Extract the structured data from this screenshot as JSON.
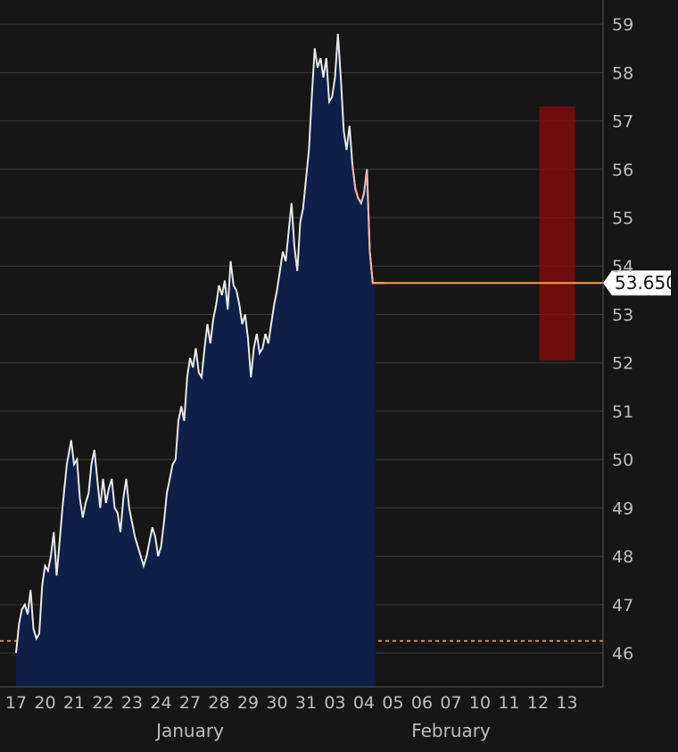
{
  "chart_data": {
    "type": "area",
    "x_tick_labels": [
      "17",
      "20",
      "21",
      "22",
      "23",
      "24",
      "27",
      "28",
      "29",
      "30",
      "31",
      "03",
      "04",
      "05",
      "06",
      "07",
      "10",
      "11",
      "12",
      "13"
    ],
    "month_labels": [
      {
        "label": "January",
        "at_tick": 6
      },
      {
        "label": "February",
        "at_tick": 15
      }
    ],
    "ylim": [
      45.3,
      59.5
    ],
    "y_ticks": [
      46,
      47,
      48,
      49,
      50,
      51,
      52,
      53,
      54,
      55,
      56,
      57,
      58,
      59
    ],
    "grid": true,
    "reference_line": 46.25,
    "highlight_region": {
      "x_start": 18.6,
      "x_end": 19.4,
      "y_low": 52.05,
      "y_high": 57.3
    },
    "last_value": 53.65,
    "last_value_label": "53.650",
    "series": [
      {
        "points": [
          [
            0.0,
            46.0
          ],
          [
            0.1,
            46.6
          ],
          [
            0.2,
            46.9
          ],
          [
            0.3,
            47.0
          ],
          [
            0.4,
            46.8
          ],
          [
            0.5,
            47.3
          ],
          [
            0.6,
            46.5
          ],
          [
            0.7,
            46.3
          ],
          [
            0.8,
            46.4
          ],
          [
            0.9,
            47.4
          ],
          [
            1.0,
            47.8
          ],
          [
            1.1,
            47.7
          ],
          [
            1.2,
            48.0
          ],
          [
            1.3,
            48.5
          ],
          [
            1.4,
            47.6
          ],
          [
            1.5,
            48.3
          ],
          [
            1.6,
            49.0
          ],
          [
            1.75,
            49.9
          ],
          [
            1.9,
            50.4
          ],
          [
            2.0,
            49.9
          ],
          [
            2.1,
            50.0
          ],
          [
            2.2,
            49.2
          ],
          [
            2.3,
            48.8
          ],
          [
            2.4,
            49.1
          ],
          [
            2.5,
            49.3
          ],
          [
            2.6,
            49.9
          ],
          [
            2.7,
            50.2
          ],
          [
            2.8,
            49.6
          ],
          [
            2.9,
            49.0
          ],
          [
            3.0,
            49.6
          ],
          [
            3.1,
            49.1
          ],
          [
            3.2,
            49.4
          ],
          [
            3.3,
            49.6
          ],
          [
            3.4,
            49.0
          ],
          [
            3.5,
            48.9
          ],
          [
            3.6,
            48.5
          ],
          [
            3.7,
            49.2
          ],
          [
            3.8,
            49.6
          ],
          [
            3.9,
            49.0
          ],
          [
            4.0,
            48.7
          ],
          [
            4.1,
            48.4
          ],
          [
            4.2,
            48.2
          ],
          [
            4.3,
            48.0
          ],
          [
            4.4,
            47.8
          ],
          [
            4.5,
            48.0
          ],
          [
            4.6,
            48.3
          ],
          [
            4.7,
            48.6
          ],
          [
            4.8,
            48.4
          ],
          [
            4.9,
            48.0
          ],
          [
            5.0,
            48.2
          ],
          [
            5.1,
            48.7
          ],
          [
            5.2,
            49.3
          ],
          [
            5.3,
            49.6
          ],
          [
            5.4,
            49.9
          ],
          [
            5.5,
            50.0
          ],
          [
            5.6,
            50.8
          ],
          [
            5.7,
            51.1
          ],
          [
            5.8,
            50.8
          ],
          [
            5.9,
            51.7
          ],
          [
            6.0,
            52.1
          ],
          [
            6.1,
            51.9
          ],
          [
            6.2,
            52.3
          ],
          [
            6.3,
            51.8
          ],
          [
            6.4,
            51.7
          ],
          [
            6.5,
            52.3
          ],
          [
            6.6,
            52.8
          ],
          [
            6.7,
            52.4
          ],
          [
            6.8,
            52.9
          ],
          [
            6.9,
            53.2
          ],
          [
            7.0,
            53.6
          ],
          [
            7.1,
            53.4
          ],
          [
            7.2,
            53.7
          ],
          [
            7.3,
            53.1
          ],
          [
            7.4,
            54.1
          ],
          [
            7.5,
            53.6
          ],
          [
            7.6,
            53.5
          ],
          [
            7.7,
            53.2
          ],
          [
            7.8,
            52.8
          ],
          [
            7.9,
            53.0
          ],
          [
            8.0,
            52.5
          ],
          [
            8.1,
            51.7
          ],
          [
            8.2,
            52.3
          ],
          [
            8.3,
            52.6
          ],
          [
            8.4,
            52.2
          ],
          [
            8.5,
            52.3
          ],
          [
            8.6,
            52.6
          ],
          [
            8.7,
            52.4
          ],
          [
            8.8,
            52.8
          ],
          [
            8.9,
            53.2
          ],
          [
            9.0,
            53.5
          ],
          [
            9.1,
            53.9
          ],
          [
            9.2,
            54.3
          ],
          [
            9.3,
            54.1
          ],
          [
            9.4,
            54.7
          ],
          [
            9.5,
            55.3
          ],
          [
            9.6,
            54.4
          ],
          [
            9.7,
            53.9
          ],
          [
            9.8,
            54.9
          ],
          [
            9.9,
            55.2
          ],
          [
            10.0,
            55.8
          ],
          [
            10.1,
            56.4
          ],
          [
            10.2,
            57.5
          ],
          [
            10.3,
            58.5
          ],
          [
            10.4,
            58.1
          ],
          [
            10.5,
            58.3
          ],
          [
            10.6,
            57.9
          ],
          [
            10.7,
            58.3
          ],
          [
            10.8,
            57.4
          ],
          [
            10.9,
            57.5
          ],
          [
            11.0,
            57.9
          ],
          [
            11.1,
            58.8
          ],
          [
            11.2,
            57.9
          ],
          [
            11.3,
            56.8
          ],
          [
            11.4,
            56.4
          ],
          [
            11.5,
            56.9
          ],
          [
            11.6,
            56.1
          ],
          [
            11.7,
            55.6
          ],
          [
            11.8,
            55.4
          ],
          [
            11.9,
            55.3
          ],
          [
            12.0,
            55.5
          ],
          [
            12.1,
            56.0
          ],
          [
            12.2,
            54.3
          ],
          [
            12.3,
            53.65
          ],
          [
            12.4,
            53.65
          ],
          [
            12.7,
            53.65
          ]
        ]
      }
    ]
  }
}
